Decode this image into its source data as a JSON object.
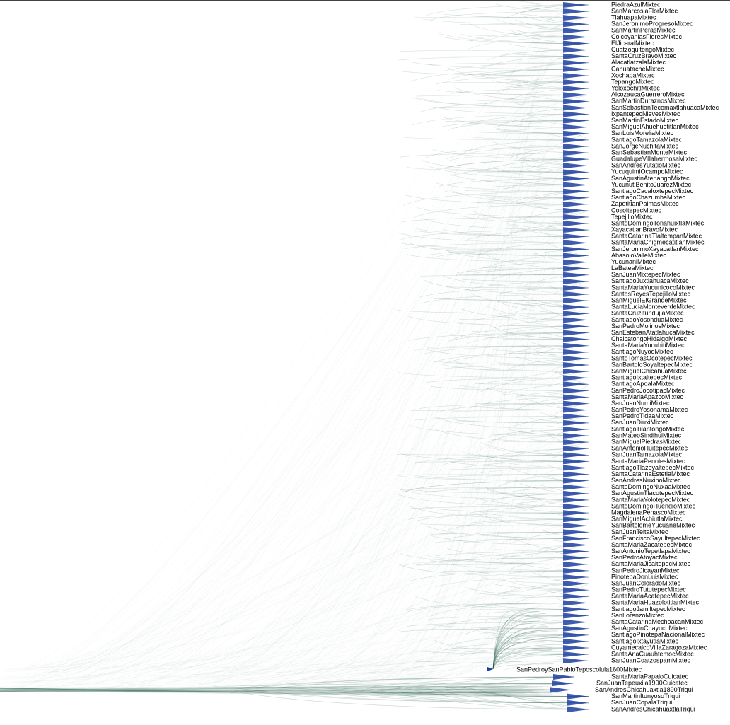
{
  "tree": {
    "edge_color": "#1e5a46",
    "tip_color": "#1f3fa0",
    "leaves": [
      "PiedraAzulMixtec",
      "SanMarcoslaFlorMixtec",
      "TlahuapaMixtec",
      "SanJeronimoProgresoMixtec",
      "SanMartinPerasMixtec",
      "CoicoyanlasFloresMixtec",
      "ElJicaralMixtec",
      "CuatzoquitengoMixtec",
      "SantaCruzBravoMixtec",
      "AlacatlatzalaMixtec",
      "CahuatacheMixtec",
      "XochapaMixtec",
      "TepangoMixtec",
      "YoloxochitlMixtec",
      "AlcozaucaGuerreroMixtec",
      "SanMartinDuraznosMixtec",
      "SanSebastianTecomaxtlahuacaMixtec",
      "IxpantepecNievesMixtec",
      "SanMartinEstadoMixtec",
      "SanMiguelAhuehuetitlanMixtec",
      "SanLuisMoreliaMixtec",
      "SantiagoTamazolaMixtec",
      "SanJorgeNuchitaMixtec",
      "SanSebastianMonteMixtec",
      "GuadalupeVillahermosaMixtec",
      "SanAndresYutatioMixtec",
      "YucuquimiOcampoMixtec",
      "SanAgustinAtenangoMixtec",
      "YucunutiBenitoJuarezMixtec",
      "SantiagoCacaloxtepecMixtec",
      "SantiagoChazumbaMixtec",
      "ZapotitlanPalmasMixtec",
      "CosoltepecMixtec",
      "TepejilloMixtec",
      "SantoDomingoTonahuixtlaMixtec",
      "XayacatlanBravoMixtec",
      "SantaCatarinaTlaltempanMixtec",
      "SantaMariaChigmecatitlanMixtec",
      "SanJeronimoXayacatlanMixtec",
      "AbasoloValleMixtec",
      "YucunaniMixtec",
      "LaBateaMixtec",
      "SanJuanMixtepecMixtec",
      "SantiagoJuxtlahuacaMixtec",
      "SantaMariaYucunicocoMixtec",
      "SantosReyesTepejilloMixtec",
      "SanMiguelElGrandeMixtec",
      "SantaLuciaMonteverdeMixtec",
      "SantaCruzItundujiaMixtec",
      "SantiagoYosonduaMixtec",
      "SanPedroMolinosMixtec",
      "SanEstebanAtatlahucaMixtec",
      "ChalcatongoHidalgoMixtec",
      "SantaMariaYucuhitiMixtec",
      "SantiagoNuyooMixtec",
      "SantoTomasOcotepecMixtec",
      "SanBartoloSoyaltepecMixtec",
      "SanMiguelChicahuaMixtec",
      "SantiagoIxtaltepecMixtec",
      "SantiagoApoalaMixtec",
      "SanPedroJocotipacMixtec",
      "SantaMariaApazcoMixtec",
      "SanJuanNumiMixtec",
      "SanPedroYosonamaMixtec",
      "SanPedroTidaaMixtec",
      "SanJuanDiuxiMixtec",
      "SantiagoTilantongoMixtec",
      "SanMateoSindihuiMixtec",
      "SanMiguelPiedrasMixtec",
      "SanAntonioHuitepecMixtec",
      "SanJuanTamazolaMixtec",
      "SantaMariaPenolesMixtec",
      "SantiagoTlazoyaltepecMixtec",
      "SantaCatarinaEstetlaMixtec",
      "SanAndresNuxinoMixtec",
      "SantoDomingoNuxaaMixtec",
      "SanAgustinTlacotepecMixtec",
      "SantaMariaYolotepecMixtec",
      "SantoDomingoHuendioMixtec",
      "MagdalenaPenascoMixtec",
      "SanMiguelAchiutlaMixtec",
      "SanBartolomeYucuaneMixtec",
      "SanJuanTeitaMixtec",
      "SanFranciscoSayultepecMixtec",
      "SantaMariaZacatepecMixtec",
      "SanAntonioTepetlapaMixtec",
      "SanPedroAtoyacMixtec",
      "SantaMariaJicaltepecMixtec",
      "SanPedroJicayanMixtec",
      "PinotepaDonLuisMixtec",
      "SanJuanColoradoMixtec",
      "SanPedroTututepecMixtec",
      "SantaMariaAcatepecMixtec",
      "SantaMariaHuazolotitlanMixtec",
      "SantiagoJamiltepecMixtec",
      "SanLorenzoMixtec",
      "SantaCatarinaMechoacanMixtec",
      "SanAgustinChayucoMixtec",
      "SantiagoPinotepaNacionalMixtec",
      "SantiagoIxtayutlaMixtec",
      "CuyamecalcoVillaZaragozaMixtec",
      "SantaAnaCuauhtemocMixtec",
      "SanJuanCoatzospamMixtec"
    ],
    "outgroup_label": "SanPedroySanPabloTeposcolula1600Mixtec",
    "lower_leaves": [
      "SantaMariaPapaloCuicatec",
      "SanJuanTepeuxila1900Cuicatec",
      "SanAndresChicahuaxtla1890Triqui",
      "SanMartinItunyosoTriqui",
      "SanJuanCopalaTriqui",
      "SanAndresChicahuaxtlaTriqui"
    ]
  }
}
